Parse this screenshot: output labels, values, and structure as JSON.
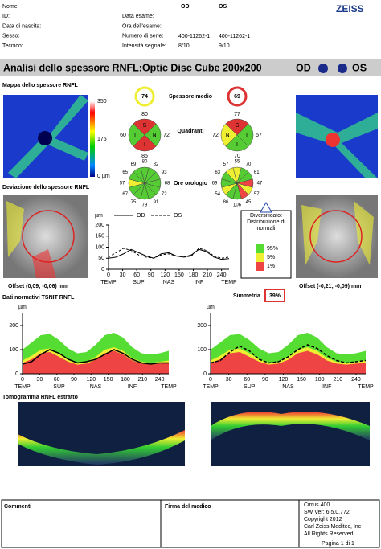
{
  "header": {
    "logo": "ZEISS",
    "col_od": "OD",
    "col_os": "OS",
    "labels_left": [
      "Nome:",
      "ID:",
      "Data di nascita:",
      "Sesso:",
      "Tecnico:"
    ],
    "labels_mid": [
      "Data esame:",
      "Ora dell'esame:",
      "Numero di serie:",
      "Intensità segnale:"
    ],
    "serial_od": "400-11262-1",
    "serial_os": "400-11262-1",
    "signal_od": "8/10",
    "signal_os": "9/10"
  },
  "title": {
    "text": "Analisi dello spessore RNFL:Optic Disc Cube 200x200",
    "od": "OD",
    "os": "OS"
  },
  "thickness_map": {
    "label": "Mappa dello spessore RNFL",
    "scale": [
      "350",
      "175",
      "0 µm"
    ]
  },
  "average": {
    "label": "Spessore medio",
    "od": 74,
    "os": 69
  },
  "quadrants": {
    "label": "Quadranti",
    "od": {
      "letters": [
        "S",
        "N",
        "I",
        "T"
      ],
      "values": [
        80,
        72,
        85,
        60
      ]
    },
    "os": {
      "letters": [
        "S",
        "T",
        "I",
        "N"
      ],
      "values": [
        77,
        57,
        70,
        72
      ]
    }
  },
  "clock": {
    "label": "Ore orologio",
    "od": [
      80,
      82,
      93,
      68,
      72,
      91,
      79,
      75,
      67,
      57,
      65,
      69
    ],
    "os": [
      55,
      70,
      61,
      47,
      57,
      45,
      106,
      86,
      54,
      69,
      63,
      57
    ]
  },
  "deviation": {
    "label": "Deviazione dello spessore RNFL",
    "offset_od": "Offset (0,09; -0,06) mm",
    "offset_os": "Offset (-0,21; -0,09) mm"
  },
  "comparison": {
    "unit": "µm",
    "legend_od": "OD",
    "legend_os": "OS",
    "ylim": [
      0,
      200
    ],
    "yticks": [
      0,
      50,
      100,
      150,
      200
    ],
    "xlim": [
      0,
      256
    ],
    "xticks": [
      0,
      30,
      60,
      90,
      120,
      150,
      180,
      210,
      240
    ],
    "regions": [
      "TEMP",
      "SUP",
      "NAS",
      "INF",
      "TEMP"
    ],
    "x": [
      0,
      16,
      32,
      48,
      64,
      80,
      96,
      112,
      128,
      144,
      160,
      176,
      192,
      208,
      224,
      240,
      256
    ],
    "od": [
      50,
      55,
      70,
      90,
      75,
      60,
      50,
      70,
      75,
      60,
      55,
      65,
      90,
      80,
      55,
      45,
      48
    ],
    "os": [
      55,
      75,
      95,
      85,
      65,
      55,
      50,
      65,
      70,
      60,
      55,
      60,
      95,
      85,
      60,
      50,
      55
    ]
  },
  "distribution": {
    "title": "Diversificato: Distribuzione di normali",
    "levels": [
      "95%",
      "5%",
      "1%"
    ]
  },
  "symmetry": {
    "label": "Simmetria",
    "value": "39%"
  },
  "tsnit": {
    "label": "Dati normativi TSNIT RNFL",
    "charts": [
      {
        "unit": "µm",
        "ylim": [
          0,
          250
        ],
        "yticks": [
          0,
          100,
          200
        ],
        "xlim": [
          0,
          256
        ],
        "xticks": [
          0,
          30,
          60,
          90,
          120,
          150,
          180,
          210,
          240
        ],
        "regions": [
          "TEMP",
          "SUP",
          "NAS",
          "INF",
          "TEMP"
        ],
        "x": [
          0,
          16,
          32,
          48,
          64,
          80,
          96,
          112,
          128,
          144,
          160,
          176,
          192,
          208,
          224,
          240,
          256
        ],
        "p95": [
          100,
          130,
          160,
          165,
          140,
          105,
          85,
          90,
          120,
          160,
          170,
          150,
          110,
          85,
          80,
          85,
          95
        ],
        "p5": [
          55,
          75,
          100,
          105,
          85,
          60,
          45,
          50,
          70,
          100,
          110,
          95,
          65,
          50,
          45,
          50,
          55
        ],
        "p1": [
          45,
          60,
          85,
          90,
          70,
          50,
          38,
          42,
          58,
          85,
          95,
          80,
          55,
          42,
          38,
          42,
          45
        ],
        "line": [
          40,
          50,
          80,
          100,
          85,
          60,
          45,
          50,
          60,
          80,
          100,
          85,
          60,
          45,
          40,
          45,
          45
        ]
      },
      {
        "unit": "µm",
        "ylim": [
          0,
          250
        ],
        "yticks": [
          0,
          100,
          200
        ],
        "xlim": [
          0,
          256
        ],
        "xticks": [
          0,
          30,
          60,
          90,
          120,
          150,
          180,
          210,
          240
        ],
        "regions": [
          "TEMP",
          "SUP",
          "NAS",
          "INF",
          "TEMP"
        ],
        "x": [
          0,
          16,
          32,
          48,
          64,
          80,
          96,
          112,
          128,
          144,
          160,
          176,
          192,
          208,
          224,
          240,
          256
        ],
        "p95": [
          100,
          130,
          160,
          165,
          140,
          105,
          85,
          90,
          120,
          160,
          170,
          150,
          110,
          85,
          80,
          85,
          95
        ],
        "p5": [
          55,
          75,
          100,
          105,
          85,
          60,
          45,
          50,
          70,
          100,
          110,
          95,
          65,
          50,
          45,
          50,
          55
        ],
        "p1": [
          45,
          60,
          85,
          90,
          70,
          50,
          38,
          42,
          58,
          85,
          95,
          80,
          55,
          42,
          38,
          42,
          45
        ],
        "line": [
          45,
          55,
          90,
          115,
          95,
          60,
          45,
          50,
          70,
          100,
          120,
          105,
          75,
          55,
          45,
          50,
          55
        ]
      }
    ]
  },
  "tomogram": {
    "label": "Tomogramma RNFL estratto"
  },
  "footer": {
    "comments": "Commenti",
    "signature": "Firma del medico",
    "device": [
      "Cirrus 400",
      "SW Ver: 6.5.0.772",
      "Copyright 2012",
      "Carl Zeiss Meditec, Inc",
      "All Rights Reserved"
    ],
    "page": "Pagina 1 di 1"
  }
}
